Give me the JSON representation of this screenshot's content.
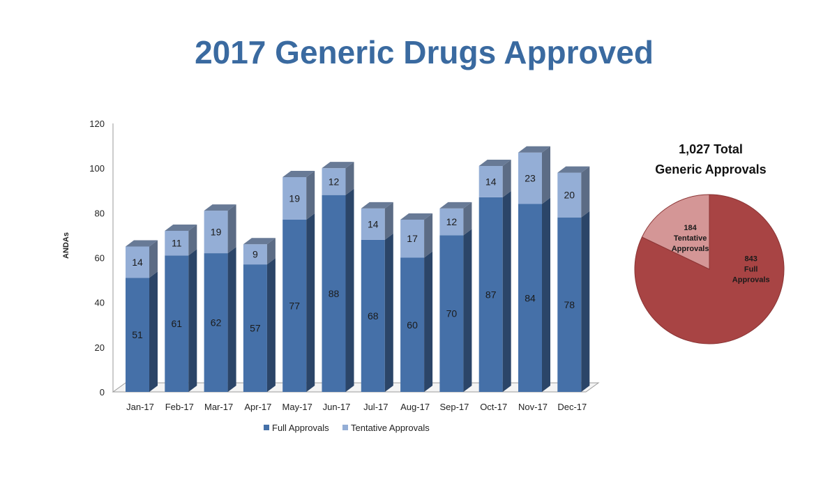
{
  "title": "2017 Generic Drugs Approved",
  "chart_data": [
    {
      "type": "bar",
      "stacked": true,
      "style": "3d",
      "categories": [
        "Jan-17",
        "Feb-17",
        "Mar-17",
        "Apr-17",
        "May-17",
        "Jun-17",
        "Jul-17",
        "Aug-17",
        "Sep-17",
        "Oct-17",
        "Nov-17",
        "Dec-17"
      ],
      "series": [
        {
          "name": "Full Approvals",
          "color": "#4570a8",
          "values": [
            51,
            61,
            62,
            57,
            77,
            88,
            68,
            60,
            70,
            87,
            84,
            78
          ]
        },
        {
          "name": "Tentative Approvals",
          "color": "#94aed6",
          "values": [
            14,
            11,
            19,
            9,
            19,
            12,
            14,
            17,
            12,
            14,
            23,
            20
          ]
        }
      ],
      "ylabel": "ANDAs",
      "xlabel": "",
      "ylim": [
        0,
        120
      ],
      "yticks": [
        "0",
        "20",
        "40",
        "60",
        "80",
        "100",
        "120"
      ],
      "grid": false,
      "legend_position": "bottom"
    },
    {
      "type": "pie",
      "title_lines": [
        "1,027 Total",
        "Generic Approvals"
      ],
      "slices": [
        {
          "value": 843,
          "label_lines": [
            "843",
            "Full",
            "Approvals"
          ],
          "color": "#a84444"
        },
        {
          "value": 184,
          "label_lines": [
            "184",
            "Tentative",
            "Approvals"
          ],
          "color": "#d49696"
        }
      ]
    }
  ]
}
